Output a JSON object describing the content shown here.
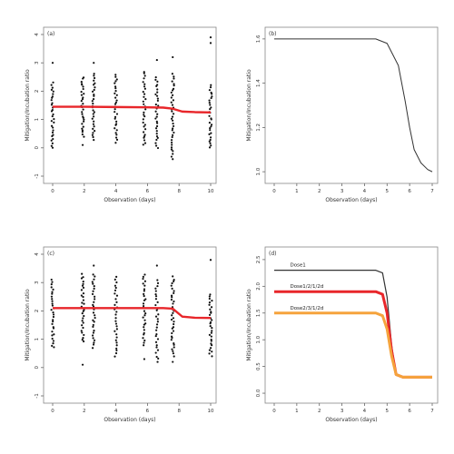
{
  "chart_data": [
    {
      "panel": "(a)",
      "type": "scatter",
      "xlabel": "Observation (days)",
      "ylabel": "Mitigation/Incubation ratio",
      "xticks": [
        "0",
        "2",
        "4",
        "6",
        "8",
        "10"
      ],
      "yticks": [
        "-1",
        "0",
        "1",
        "2",
        "3",
        "4"
      ],
      "xlim": [
        0,
        10
      ],
      "ylim": [
        -1,
        4
      ],
      "columns": [
        {
          "x": 0,
          "ymin": 0.0,
          "ymax": 2.3,
          "count": 30,
          "outliers": [
            3.0
          ]
        },
        {
          "x": 1.9,
          "ymin": 0.4,
          "ymax": 2.5,
          "count": 30,
          "outliers": [
            0.1
          ]
        },
        {
          "x": 2.6,
          "ymin": 0.3,
          "ymax": 2.6,
          "count": 30,
          "outliers": [
            3.0
          ]
        },
        {
          "x": 4.0,
          "ymin": 0.2,
          "ymax": 2.6,
          "count": 30,
          "outliers": []
        },
        {
          "x": 5.8,
          "ymin": 0.1,
          "ymax": 2.7,
          "count": 30,
          "outliers": [
            0.4
          ]
        },
        {
          "x": 6.6,
          "ymin": 0.0,
          "ymax": 2.5,
          "count": 30,
          "outliers": [
            3.1
          ]
        },
        {
          "x": 7.6,
          "ymin": -0.3,
          "ymax": 2.6,
          "count": 36,
          "outliers": [
            -0.4,
            3.2
          ]
        },
        {
          "x": 10,
          "ymin": 0.0,
          "ymax": 2.2,
          "count": 30,
          "outliers": [
            3.7,
            3.9
          ]
        }
      ],
      "fit": {
        "x": [
          0,
          2,
          4,
          6,
          7,
          7.6,
          8.2,
          9,
          10
        ],
        "y": [
          1.45,
          1.45,
          1.44,
          1.43,
          1.42,
          1.38,
          1.28,
          1.26,
          1.25
        ],
        "color": "#e8262a"
      }
    },
    {
      "panel": "(b)",
      "type": "line",
      "xlabel": "Observation (days)",
      "ylabel": "Mitigation/Incubation ratio",
      "xticks": [
        "0",
        "1",
        "2",
        "3",
        "4",
        "5",
        "6",
        "7"
      ],
      "yticks": [
        "1.0",
        "1.2",
        "1.4",
        "1.6"
      ],
      "xlim": [
        0,
        7
      ],
      "ylim": [
        0.98,
        1.62
      ],
      "series": [
        {
          "x": [
            0,
            4.5,
            5.0,
            5.5,
            5.8,
            6.0,
            6.2,
            6.5,
            6.8,
            7.0
          ],
          "y": [
            1.6,
            1.6,
            1.58,
            1.48,
            1.32,
            1.2,
            1.1,
            1.04,
            1.01,
            1.0
          ],
          "color": "#333333"
        }
      ]
    },
    {
      "panel": "(c)",
      "type": "scatter",
      "xlabel": "Observation (days)",
      "ylabel": "Mitigation/Incubation ratio",
      "xticks": [
        "0",
        "2",
        "4",
        "6",
        "8",
        "10"
      ],
      "yticks": [
        "-1",
        "0",
        "1",
        "2",
        "3",
        "4"
      ],
      "xlim": [
        0,
        10
      ],
      "ylim": [
        -1,
        4
      ],
      "columns": [
        {
          "x": 0,
          "ymin": 0.7,
          "ymax": 3.1,
          "count": 30,
          "outliers": []
        },
        {
          "x": 1.9,
          "ymin": 0.9,
          "ymax": 3.3,
          "count": 30,
          "outliers": [
            0.1
          ]
        },
        {
          "x": 2.6,
          "ymin": 0.7,
          "ymax": 3.3,
          "count": 30,
          "outliers": [
            3.6
          ]
        },
        {
          "x": 4.0,
          "ymin": 0.4,
          "ymax": 3.2,
          "count": 30,
          "outliers": []
        },
        {
          "x": 5.8,
          "ymin": 0.8,
          "ymax": 3.3,
          "count": 30,
          "outliers": [
            0.3
          ]
        },
        {
          "x": 6.6,
          "ymin": 0.2,
          "ymax": 3.1,
          "count": 30,
          "outliers": [
            3.6
          ]
        },
        {
          "x": 7.6,
          "ymin": 0.4,
          "ymax": 3.2,
          "count": 36,
          "outliers": [
            0.2
          ]
        },
        {
          "x": 10,
          "ymin": 0.4,
          "ymax": 2.6,
          "count": 30,
          "outliers": [
            3.8
          ]
        }
      ],
      "fit": {
        "x": [
          0,
          2,
          4,
          6,
          7,
          7.6,
          8.2,
          9,
          10
        ],
        "y": [
          2.1,
          2.1,
          2.1,
          2.1,
          2.1,
          2.08,
          1.8,
          1.76,
          1.75
        ],
        "color": "#e8262a"
      }
    },
    {
      "panel": "(d)",
      "type": "line",
      "xlabel": "Observation (days)",
      "ylabel": "Mitigation/Incubation ratio",
      "xticks": [
        "0",
        "1",
        "2",
        "3",
        "4",
        "5",
        "6",
        "7"
      ],
      "yticks": [
        "0.0",
        "0.5",
        "1.0",
        "1.5",
        "2.0",
        "2.5"
      ],
      "xlim": [
        0,
        7
      ],
      "ylim": [
        -0.05,
        2.6
      ],
      "series": [
        {
          "name": "Dose1",
          "x": [
            0,
            4.5,
            4.8,
            5.0,
            5.2,
            5.4,
            5.7,
            6.0,
            7.0
          ],
          "y": [
            2.3,
            2.3,
            2.25,
            1.8,
            0.9,
            0.35,
            0.3,
            0.3,
            0.3
          ],
          "color": "#333333",
          "width": 1.2
        },
        {
          "name": "Dose1/2/1/2d",
          "x": [
            0,
            4.5,
            4.8,
            5.0,
            5.2,
            5.4,
            5.7,
            6.0,
            7.0
          ],
          "y": [
            1.9,
            1.9,
            1.85,
            1.5,
            0.8,
            0.35,
            0.3,
            0.3,
            0.3
          ],
          "color": "#e8262a",
          "width": 3
        },
        {
          "name": "Dose2/3/1/2d",
          "x": [
            0,
            4.5,
            4.8,
            5.0,
            5.2,
            5.4,
            5.7,
            6.0,
            7.0
          ],
          "y": [
            1.5,
            1.5,
            1.45,
            1.2,
            0.7,
            0.35,
            0.3,
            0.3,
            0.3
          ],
          "color": "#f5a33c",
          "width": 3
        }
      ]
    }
  ]
}
